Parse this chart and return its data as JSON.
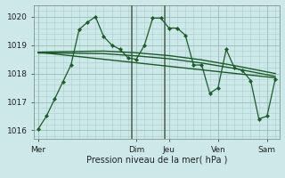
{
  "bg_color": "#cce8e8",
  "grid_color_minor": "#aacccc",
  "grid_color_major": "#99bbbb",
  "line_color": "#1a5c28",
  "marker_color": "#1a5c28",
  "ylabel_ticks": [
    1016,
    1017,
    1018,
    1019,
    1020
  ],
  "xlabel": "Pression niveau de la mer( hPa )",
  "day_labels": [
    "Mer",
    "Dim",
    "Jeu",
    "Ven",
    "Sam"
  ],
  "day_positions": [
    0,
    12,
    16,
    22,
    28
  ],
  "xlim": [
    -0.5,
    29.5
  ],
  "ylim": [
    1015.7,
    1020.4
  ],
  "main_series": [
    [
      0,
      1016.05
    ],
    [
      1,
      1016.5
    ],
    [
      2,
      1017.1
    ],
    [
      3,
      1017.7
    ],
    [
      4,
      1018.3
    ],
    [
      5,
      1019.55
    ],
    [
      6,
      1019.8
    ],
    [
      7,
      1020.0
    ],
    [
      8,
      1019.3
    ],
    [
      9,
      1019.0
    ],
    [
      10,
      1018.85
    ],
    [
      11,
      1018.55
    ],
    [
      12,
      1018.5
    ],
    [
      13,
      1019.0
    ],
    [
      14,
      1019.95
    ],
    [
      15,
      1019.95
    ],
    [
      16,
      1019.6
    ],
    [
      17,
      1019.6
    ],
    [
      18,
      1019.35
    ],
    [
      19,
      1018.3
    ],
    [
      20,
      1018.3
    ],
    [
      21,
      1017.3
    ],
    [
      22,
      1017.5
    ],
    [
      23,
      1018.85
    ],
    [
      24,
      1018.2
    ],
    [
      25,
      1018.1
    ],
    [
      26,
      1017.75
    ],
    [
      27,
      1016.4
    ],
    [
      28,
      1016.5
    ],
    [
      29,
      1017.8
    ]
  ],
  "smooth_series1": [
    [
      0,
      1018.75
    ],
    [
      3,
      1018.77
    ],
    [
      8,
      1018.79
    ],
    [
      12,
      1018.73
    ],
    [
      16,
      1018.63
    ],
    [
      20,
      1018.48
    ],
    [
      24,
      1018.28
    ],
    [
      29,
      1018.0
    ]
  ],
  "smooth_series2": [
    [
      0,
      1018.72
    ],
    [
      3,
      1018.72
    ],
    [
      8,
      1018.7
    ],
    [
      12,
      1018.62
    ],
    [
      16,
      1018.52
    ],
    [
      20,
      1018.37
    ],
    [
      24,
      1018.18
    ],
    [
      29,
      1017.9
    ]
  ],
  "trend_line": [
    [
      0,
      1018.75
    ],
    [
      29,
      1017.85
    ]
  ],
  "dark_vlines": [
    11.5,
    15.5
  ],
  "vline_color": "#556b55"
}
